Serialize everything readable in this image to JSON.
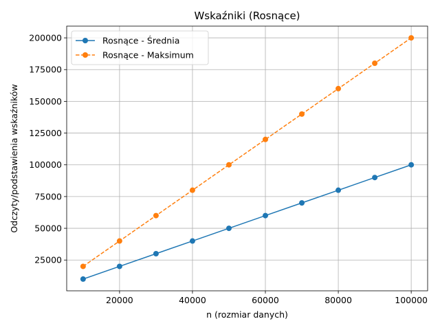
{
  "chart_data": {
    "type": "line",
    "title": "Wskaźniki (Rosnące)",
    "xlabel": "n (rozmiar danych)",
    "ylabel": "Odczyty/podstawienia wskaźników",
    "x": [
      10000,
      20000,
      30000,
      40000,
      50000,
      60000,
      70000,
      80000,
      90000,
      100000
    ],
    "xlim": [
      5500,
      104500
    ],
    "ylim": [
      755,
      209245
    ],
    "xticks": [
      20000,
      40000,
      60000,
      80000,
      100000
    ],
    "xtick_labels": [
      "20000",
      "40000",
      "60000",
      "80000",
      "100000"
    ],
    "yticks": [
      25000,
      50000,
      75000,
      100000,
      125000,
      150000,
      175000,
      200000
    ],
    "ytick_labels": [
      "25000",
      "50000",
      "75000",
      "100000",
      "125000",
      "150000",
      "175000",
      "200000"
    ],
    "grid": true,
    "legend_position": "top-left",
    "series": [
      {
        "name": "Rosnące - Średnia",
        "values": [
          10000,
          20000,
          30000,
          40000,
          50000,
          60000,
          70000,
          80000,
          90000,
          100000
        ],
        "color": "#1f77b4",
        "line_style": "solid",
        "marker": "circle"
      },
      {
        "name": "Rosnące - Maksimum",
        "values": [
          20000,
          40000,
          60000,
          80000,
          100000,
          120000,
          140000,
          160000,
          180000,
          200000
        ],
        "color": "#ff7f0e",
        "line_style": "dashed",
        "marker": "circle"
      }
    ]
  }
}
